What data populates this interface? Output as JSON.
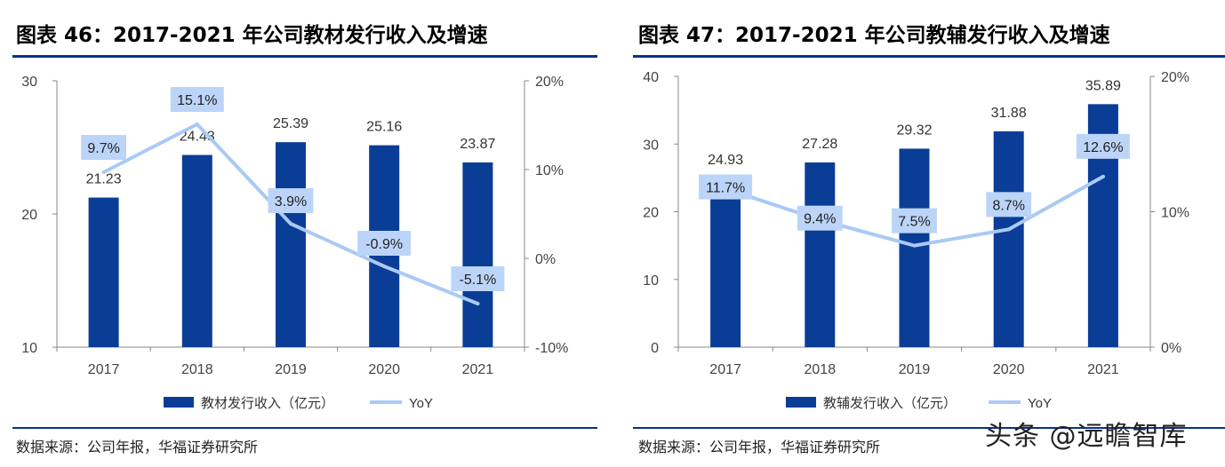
{
  "charts": [
    {
      "title": "图表 46：2017-2021 年公司教材发行收入及增速",
      "source": "数据来源：公司年报，华福证券研究所",
      "legend": {
        "bar": "教材发行收入（亿元）",
        "line": "YoY"
      },
      "colors": {
        "bar": "#0a3d96",
        "line": "#aac9f5",
        "label_box": "#bcd4f7",
        "axis": "#888888"
      }
    },
    {
      "title": "图表 47：2017-2021 年公司教辅发行收入及增速",
      "source": "数据来源：公司年报，华福证券研究所",
      "legend": {
        "bar": "教辅发行收入（亿元）",
        "line": "YoY"
      },
      "colors": {
        "bar": "#0a3d96",
        "line": "#aac9f5",
        "label_box": "#bcd4f7",
        "axis": "#888888"
      }
    }
  ],
  "watermark": "头条 @远瞻智库",
  "chart_data": [
    {
      "type": "bar",
      "title": "",
      "categories": [
        "2017",
        "2018",
        "2019",
        "2020",
        "2021"
      ],
      "series": [
        {
          "name": "教材发行收入（亿元）",
          "type": "bar",
          "axis": "left",
          "values": [
            21.23,
            24.43,
            25.39,
            25.16,
            23.87
          ],
          "labels": [
            "21.23",
            "24.43",
            "25.39",
            "25.16",
            "23.87"
          ]
        },
        {
          "name": "YoY",
          "type": "line",
          "axis": "right",
          "values": [
            9.7,
            15.1,
            3.9,
            -0.9,
            -5.1
          ],
          "labels": [
            "9.7%",
            "15.1%",
            "3.9%",
            "-0.9%",
            "-5.1%"
          ]
        }
      ],
      "y_left": {
        "min": 10,
        "max": 30,
        "ticks": [
          "10",
          "20",
          "30"
        ],
        "tick_values": [
          10,
          20,
          30
        ]
      },
      "y_right": {
        "min": -10,
        "max": 20,
        "ticks": [
          "-10%",
          "0%",
          "10%",
          "20%"
        ],
        "tick_values": [
          -10,
          0,
          10,
          20
        ]
      },
      "grid": false,
      "legend_position": "bottom"
    },
    {
      "type": "bar",
      "title": "",
      "categories": [
        "2017",
        "2018",
        "2019",
        "2020",
        "2021"
      ],
      "series": [
        {
          "name": "教辅发行收入（亿元）",
          "type": "bar",
          "axis": "left",
          "values": [
            24.93,
            27.28,
            29.32,
            31.88,
            35.89
          ],
          "labels": [
            "24.93",
            "27.28",
            "29.32",
            "31.88",
            "35.89"
          ]
        },
        {
          "name": "YoY",
          "type": "line",
          "axis": "right",
          "values": [
            11.7,
            9.4,
            7.5,
            8.7,
            12.6
          ],
          "labels": [
            "11.7%",
            "9.4%",
            "7.5%",
            "8.7%",
            "12.6%"
          ]
        }
      ],
      "y_left": {
        "min": 0,
        "max": 40,
        "ticks": [
          "0",
          "10",
          "20",
          "30",
          "40"
        ],
        "tick_values": [
          0,
          10,
          20,
          30,
          40
        ]
      },
      "y_right": {
        "min": 0,
        "max": 20,
        "ticks": [
          "0%",
          "10%",
          "20%"
        ],
        "tick_values": [
          0,
          10,
          20
        ]
      },
      "grid": false,
      "legend_position": "bottom"
    }
  ]
}
